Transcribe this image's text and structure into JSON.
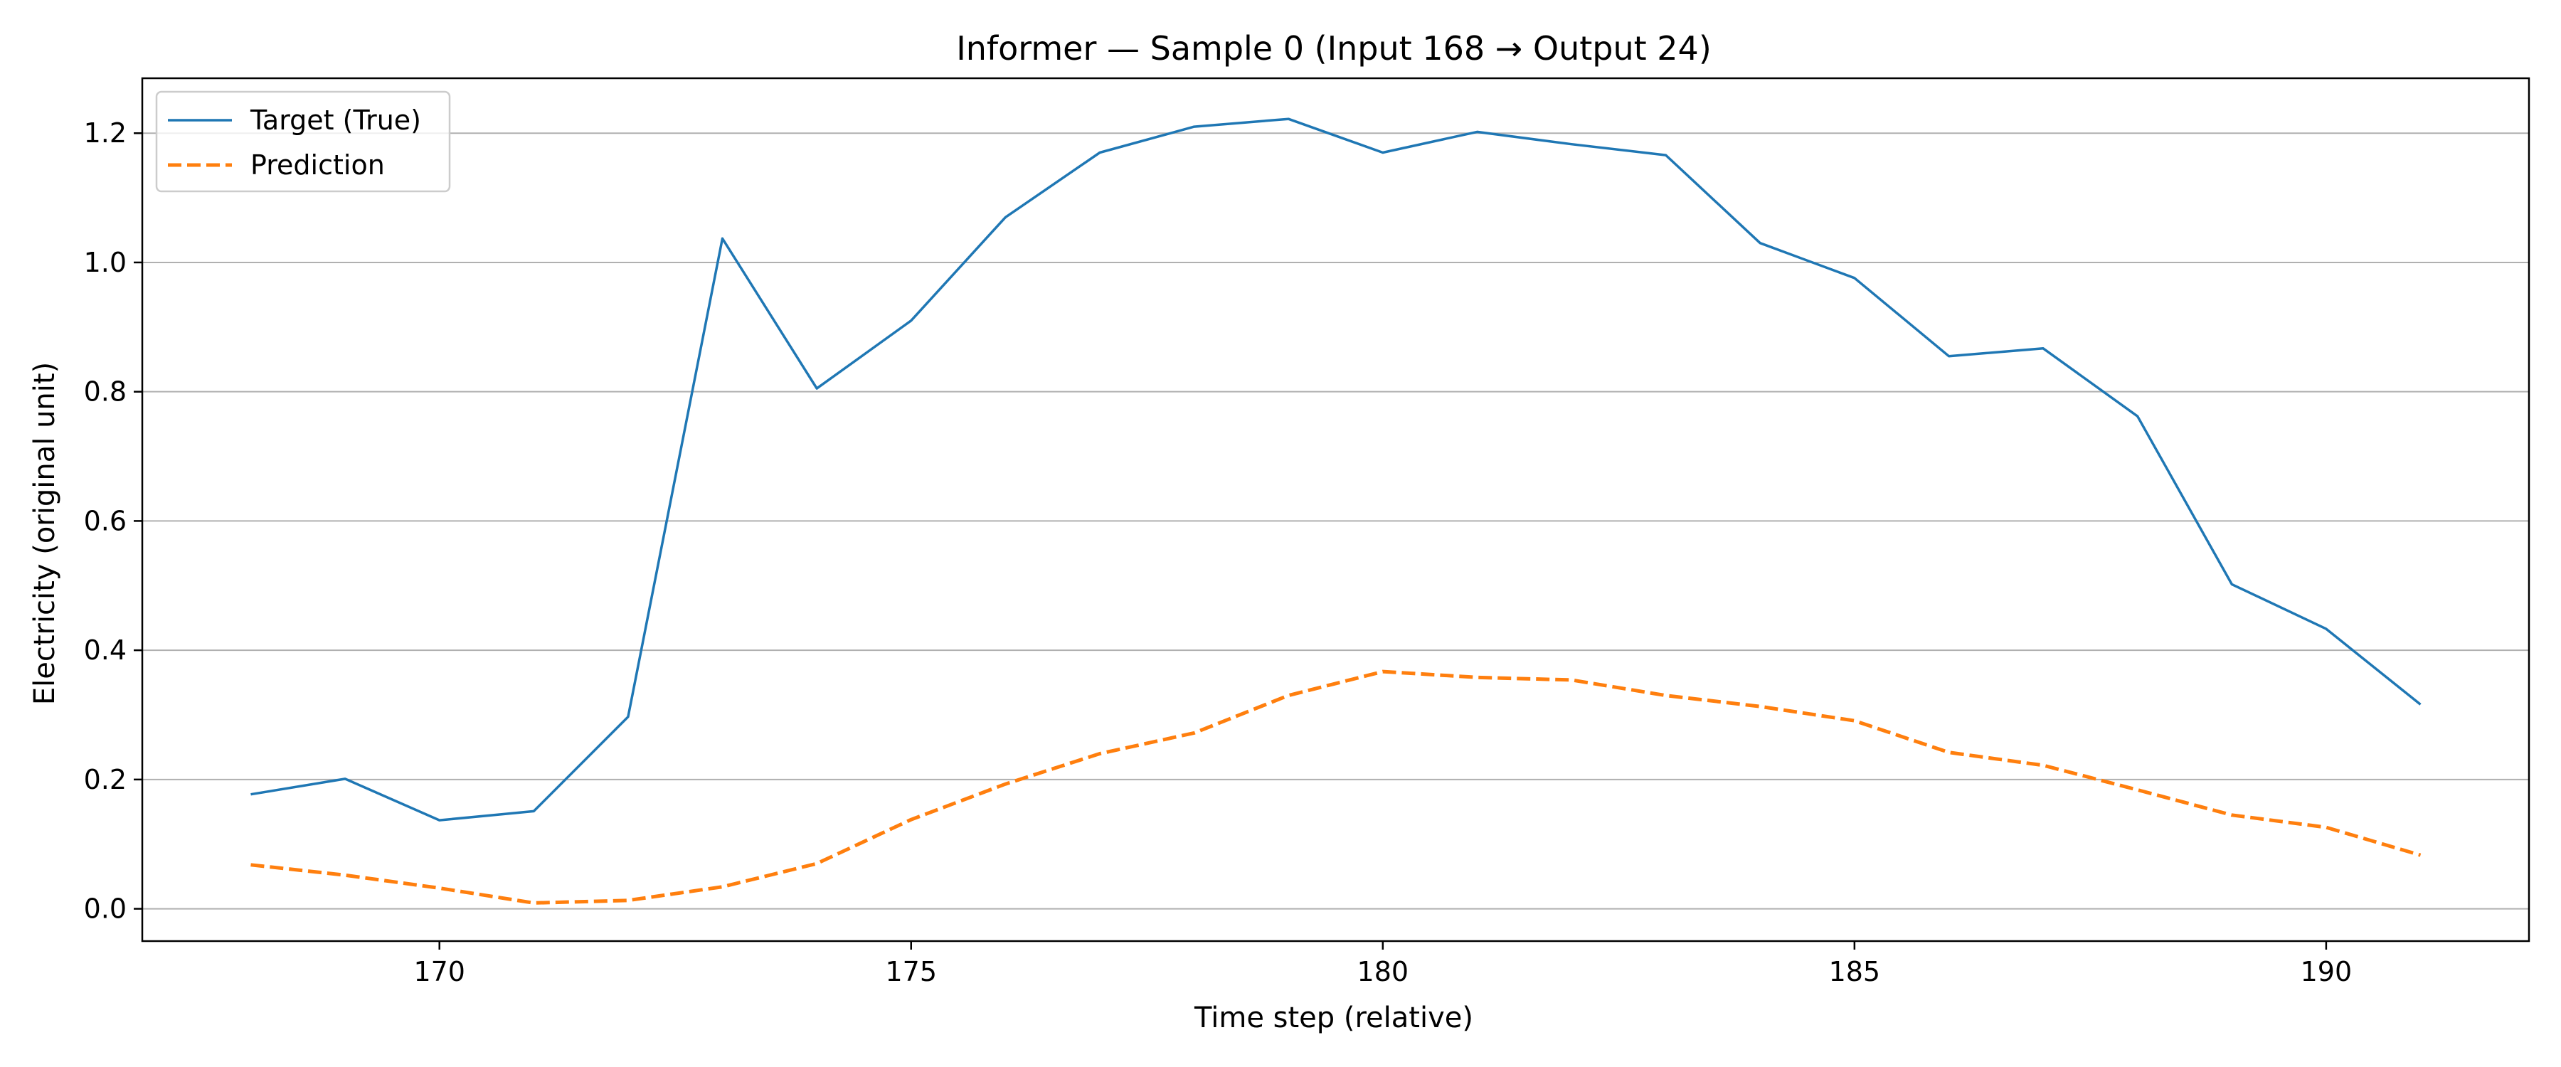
{
  "chart_data": {
    "type": "line",
    "title": "Informer — Sample 0 (Input 168 → Output 24)",
    "xlabel": "Time step (relative)",
    "ylabel": "Electricity (original unit)",
    "xlim": [
      166.85,
      192.15
    ],
    "ylim": [
      -0.05,
      1.285
    ],
    "xticks": [
      170,
      175,
      180,
      185,
      190
    ],
    "yticks": [
      0.0,
      0.2,
      0.4,
      0.6,
      0.8,
      1.0,
      1.2
    ],
    "grid": "y-major",
    "legend_position": "top-left",
    "x": [
      168,
      169,
      170,
      171,
      172,
      173,
      174,
      175,
      176,
      177,
      178,
      179,
      180,
      181,
      182,
      183,
      184,
      185,
      186,
      187,
      188,
      189,
      190,
      191
    ],
    "series": [
      {
        "name": "Target (True)",
        "color": "#1f77b4",
        "style": "solid",
        "values": [
          0.177,
          0.201,
          0.137,
          0.151,
          0.297,
          1.037,
          0.805,
          0.91,
          1.07,
          1.17,
          1.21,
          1.222,
          1.17,
          1.202,
          1.183,
          1.166,
          1.03,
          0.976,
          0.855,
          0.867,
          0.762,
          0.502,
          0.433,
          0.316
        ]
      },
      {
        "name": "Prediction",
        "color": "#ff7f0e",
        "style": "dashed",
        "values": [
          0.068,
          0.052,
          0.032,
          0.009,
          0.013,
          0.034,
          0.07,
          0.138,
          0.193,
          0.24,
          0.272,
          0.33,
          0.367,
          0.358,
          0.354,
          0.33,
          0.313,
          0.291,
          0.242,
          0.222,
          0.184,
          0.145,
          0.126,
          0.083
        ]
      }
    ]
  }
}
